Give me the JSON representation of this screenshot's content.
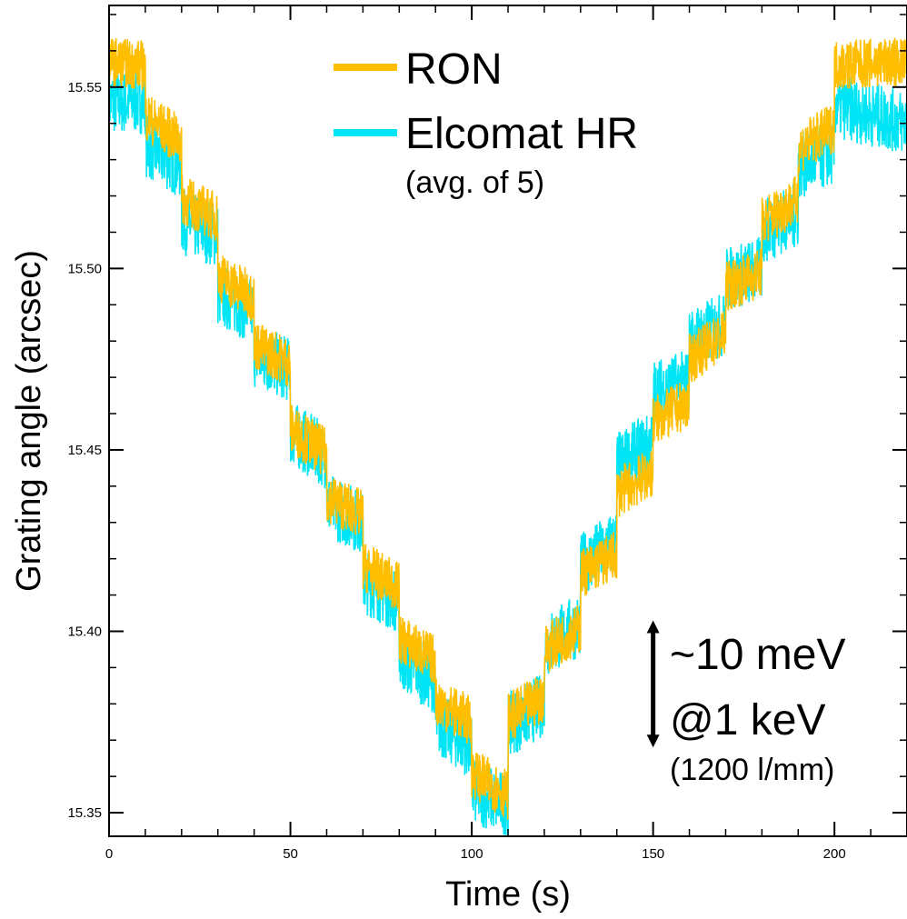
{
  "chart_data": {
    "type": "line",
    "title": "",
    "xlabel": "Time (s)",
    "ylabel": "Grating angle (arcsec)",
    "xlim": [
      0,
      220
    ],
    "ylim": [
      15.3435,
      15.5725
    ],
    "x_ticks": [
      0,
      50,
      100,
      150,
      200
    ],
    "x_tick_labels": [
      "0",
      "50",
      "100",
      "150",
      "200"
    ],
    "y_ticks": [
      15.35,
      15.4,
      15.45,
      15.5,
      15.55
    ],
    "y_tick_labels": [
      "15.35",
      "15.40",
      "15.45",
      "15.50",
      "15.55"
    ],
    "grid": false,
    "legend_position": "top-center",
    "legend_note": "(avg. of 5)",
    "series": [
      {
        "name": "RON",
        "color": "#FFBF00",
        "x": [
          0,
          10,
          10,
          20,
          20,
          30,
          30,
          40,
          40,
          50,
          50,
          60,
          60,
          70,
          70,
          80,
          80,
          90,
          90,
          100,
          100,
          110,
          110,
          120,
          120,
          130,
          130,
          140,
          140,
          150,
          150,
          160,
          160,
          170,
          170,
          180,
          180,
          190,
          190,
          200,
          200,
          220
        ],
        "y": [
          15.557,
          15.556,
          15.542,
          15.535,
          15.519,
          15.514,
          15.498,
          15.492,
          15.479,
          15.474,
          15.456,
          15.449,
          15.437,
          15.432,
          15.418,
          15.412,
          15.398,
          15.392,
          15.381,
          15.375,
          15.361,
          15.355,
          15.376,
          15.382,
          15.395,
          15.401,
          15.416,
          15.421,
          15.438,
          15.444,
          15.458,
          15.463,
          15.475,
          15.482,
          15.495,
          15.499,
          15.513,
          15.519,
          15.533,
          15.539,
          15.556,
          15.557
        ],
        "noise_amplitude": 0.007
      },
      {
        "name": "Elcomat HR",
        "color": "#00E5F5",
        "x": [
          0,
          10,
          10,
          20,
          20,
          30,
          30,
          40,
          40,
          50,
          50,
          60,
          60,
          70,
          70,
          80,
          80,
          90,
          90,
          100,
          100,
          110,
          110,
          120,
          120,
          130,
          130,
          140,
          140,
          150,
          150,
          160,
          160,
          170,
          170,
          180,
          180,
          190,
          190,
          200,
          200,
          220
        ],
        "y": [
          15.546,
          15.546,
          15.534,
          15.528,
          15.513,
          15.509,
          15.493,
          15.488,
          15.476,
          15.472,
          15.455,
          15.448,
          15.435,
          15.43,
          15.414,
          15.408,
          15.393,
          15.386,
          15.375,
          15.368,
          15.356,
          15.352,
          15.374,
          15.38,
          15.396,
          15.402,
          15.418,
          15.425,
          15.446,
          15.452,
          15.466,
          15.469,
          15.48,
          15.485,
          15.497,
          15.5,
          15.51,
          15.515,
          15.528,
          15.532,
          15.545,
          15.54
        ],
        "noise_amplitude": 0.009
      }
    ],
    "annotation": {
      "arrow_from": 15.403,
      "arrow_to": 15.368,
      "arrow_x": 150,
      "line1": "~10 meV",
      "line2": "@1 keV",
      "line3": "(1200 l/mm)"
    }
  }
}
